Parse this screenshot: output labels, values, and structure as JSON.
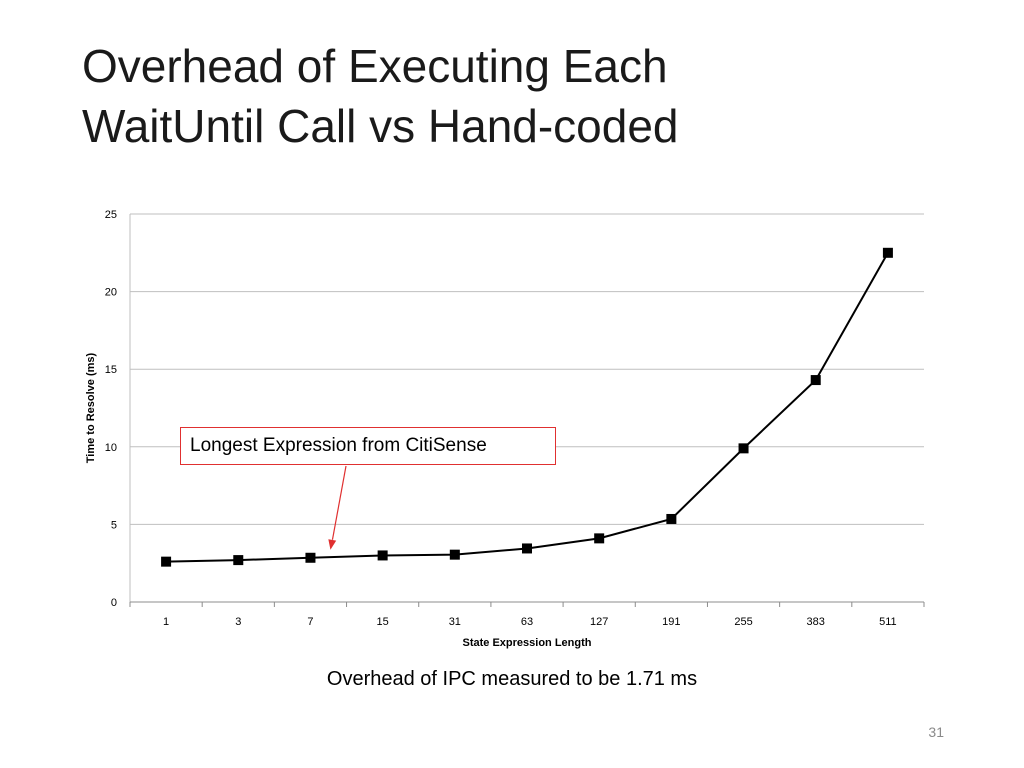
{
  "slide": {
    "title_lines": [
      "Overhead of Executing Each",
      "WaitUntil Call vs Hand-coded"
    ],
    "caption": "Overhead of IPC measured to be 1.71 ms",
    "page_number": "31"
  },
  "annotation": {
    "text": "Longest Expression from CitiSense",
    "points_to_category": "7",
    "color": "#e03030"
  },
  "chart_data": {
    "type": "line",
    "categories": [
      "1",
      "3",
      "7",
      "15",
      "31",
      "63",
      "127",
      "191",
      "255",
      "383",
      "511"
    ],
    "series": [
      {
        "values": [
          2.6,
          2.7,
          2.85,
          3.0,
          3.05,
          3.45,
          4.1,
          5.35,
          9.9,
          14.3,
          22.5
        ]
      }
    ],
    "xlabel": "State Expression Length",
    "ylabel": "Time to Resolve (ms)",
    "ylim": [
      0,
      25
    ],
    "yticks": [
      0,
      5,
      10,
      15,
      20,
      25
    ],
    "grid": true,
    "legend": "none",
    "line_color": "#000000",
    "grid_color": "#bfbfbf"
  }
}
